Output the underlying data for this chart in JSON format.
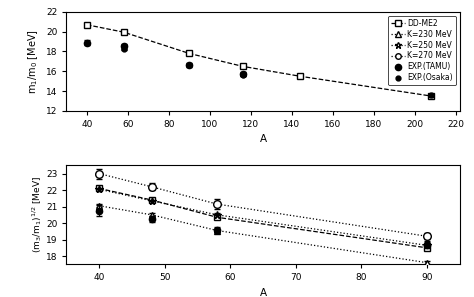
{
  "top": {
    "xlim": [
      30,
      222
    ],
    "ylim": [
      12,
      22
    ],
    "yticks": [
      12,
      14,
      16,
      18,
      20,
      22
    ],
    "xticks": [
      40,
      60,
      80,
      100,
      120,
      140,
      160,
      180,
      200,
      220
    ],
    "xlabel": "A",
    "ylabel": "m$_1$/m$_0$ [MeV]",
    "DDME2": {
      "x": [
        40,
        58,
        90,
        116,
        144,
        208
      ],
      "y": [
        20.7,
        19.95,
        17.8,
        16.5,
        15.5,
        13.5
      ],
      "yerr": [
        0.15,
        0.15,
        0.1,
        0.1,
        0.1,
        0.15
      ]
    },
    "EXP_TAMU": {
      "x": [
        40,
        58,
        90,
        116
      ],
      "y": [
        18.9,
        18.55,
        16.6,
        15.7
      ],
      "yerr": [
        0.25,
        0.25,
        0.2,
        0.2
      ]
    },
    "EXP_Osaka": {
      "x": [
        58,
        116,
        208
      ],
      "y": [
        18.3,
        15.6,
        13.6
      ],
      "yerr": [
        0.18,
        0.12,
        0.15
      ]
    }
  },
  "bottom": {
    "xlim": [
      35,
      95
    ],
    "ylim": [
      17.5,
      23.5
    ],
    "yticks": [
      18,
      19,
      20,
      21,
      22,
      23
    ],
    "xticks": [
      40,
      50,
      60,
      70,
      80,
      90
    ],
    "xlabel": "A",
    "ylabel": "(m$_3$/m$_1$)$^{1/2}$ [MeV]",
    "DDME2": {
      "x": [
        40,
        48,
        58,
        90
      ],
      "y": [
        22.1,
        21.4,
        20.35,
        18.5
      ],
      "yerr": [
        0.1,
        0.1,
        0.1,
        0.1
      ]
    },
    "K230": {
      "x": [
        40,
        48,
        58,
        90
      ],
      "y": [
        21.05,
        20.5,
        19.55,
        17.6
      ],
      "yerr": [
        0.1,
        0.1,
        0.1,
        0.1
      ]
    },
    "K250": {
      "x": [
        40,
        48,
        58,
        90
      ],
      "y": [
        22.05,
        21.35,
        20.5,
        18.65
      ],
      "yerr": [
        0.1,
        0.1,
        0.1,
        0.1
      ]
    },
    "K270": {
      "x": [
        40,
        48,
        58,
        90
      ],
      "y": [
        23.0,
        22.2,
        21.15,
        19.2
      ],
      "yerr": [
        0.3,
        0.2,
        0.3,
        0.18
      ]
    },
    "EXP_TAMU": {
      "x": [
        40,
        48,
        58,
        90
      ],
      "y": [
        20.75,
        20.25,
        19.6,
        18.65
      ],
      "yerr": [
        0.35,
        0.2,
        0.15,
        0.15
      ]
    },
    "EXP_Osaka": {
      "x": [
        58,
        90
      ],
      "y": [
        19.55,
        18.8
      ],
      "yerr": [
        0.12,
        0.12
      ]
    }
  },
  "legend": {
    "DDME2": "DD-ME2",
    "K230": "K=230 MeV",
    "K250": "K=250 MeV",
    "K270": "K=270 MeV",
    "EXP_TAMU": "EXP.(TAMU)",
    "EXP_Osaka": "EXP.(Osaka)"
  }
}
